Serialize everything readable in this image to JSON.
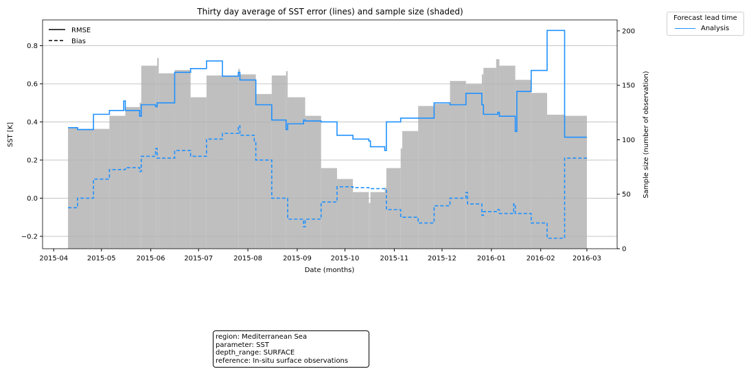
{
  "chart_data": {
    "type": "line",
    "title": "Thirty day average of SST error (lines) and sample size (shaded)",
    "xlabel": "Date (months)",
    "ylabel": "SST [K]",
    "y2label": "Sample size (number of observation)",
    "ylim": [
      -0.265,
      0.935
    ],
    "y2lim": [
      0,
      210
    ],
    "yticks": [
      -0.2,
      0.0,
      0.2,
      0.4,
      0.6,
      0.8
    ],
    "ytick_labels": [
      "−0.2",
      "0.0",
      "0.2",
      "0.4",
      "0.6",
      "0.8"
    ],
    "y2ticks": [
      0,
      50,
      100,
      150,
      200
    ],
    "y2tick_labels": [
      "0",
      "50",
      "100",
      "150",
      "200"
    ],
    "xlim": [
      "2015-03-25",
      "2016-03-20"
    ],
    "xticks": [
      "2015-04-01",
      "2015-05-01",
      "2015-06-01",
      "2015-07-01",
      "2015-08-01",
      "2015-09-01",
      "2015-10-01",
      "2015-11-01",
      "2015-12-01",
      "2016-01-01",
      "2016-02-01",
      "2016-03-01"
    ],
    "xtick_labels": [
      "2015-04",
      "2015-05",
      "2015-06",
      "2015-07",
      "2015-08",
      "2015-09",
      "2015-10",
      "2015-11",
      "2015-12",
      "2016-01",
      "2016-02",
      "2016-03"
    ],
    "grid": "horizontal",
    "style_legend": {
      "placement": "upper-left",
      "entries": [
        {
          "label": "RMSE",
          "dash": "solid"
        },
        {
          "label": "Bias",
          "dash": "dashed"
        }
      ]
    },
    "series_legend": {
      "placement": "outside-upper-right",
      "title": "Forecast lead time",
      "entries": [
        {
          "label": "Analysis",
          "color": "#1e90ff"
        }
      ]
    },
    "colors": {
      "line": "#1e90ff",
      "shade": "#bfbfbf",
      "grid": "#b0b0b0"
    },
    "sample_size": {
      "x": [
        "2015-04-10",
        "2015-04-16",
        "2015-04-26",
        "2015-05-06",
        "2015-05-16",
        "2015-05-25",
        "2015-05-26",
        "2015-06-04",
        "2015-06-05",
        "2015-06-06",
        "2015-06-16",
        "2015-06-26",
        "2015-07-06",
        "2015-07-16",
        "2015-07-26",
        "2015-07-27",
        "2015-08-06",
        "2015-08-16",
        "2015-08-25",
        "2015-08-26",
        "2015-09-06",
        "2015-09-16",
        "2015-09-26",
        "2015-10-06",
        "2015-10-16",
        "2015-10-17",
        "2015-10-26",
        "2015-10-27",
        "2015-11-05",
        "2015-11-06",
        "2015-11-16",
        "2015-11-26",
        "2015-12-06",
        "2015-12-16",
        "2015-12-26",
        "2015-12-27",
        "2016-01-04",
        "2016-01-06",
        "2016-01-16",
        "2016-01-26",
        "2016-02-05",
        "2016-02-16",
        "2016-03-01"
      ],
      "values": [
        111,
        110,
        110,
        122,
        130,
        134,
        168,
        168,
        175,
        161,
        164,
        139,
        159,
        159,
        165,
        160,
        142,
        159,
        163,
        139,
        122,
        74,
        64,
        52,
        42,
        52,
        56,
        74,
        92,
        108,
        131,
        133,
        154,
        151,
        160,
        166,
        174,
        168,
        155,
        143,
        123,
        122,
        38
      ]
    },
    "series": [
      {
        "name": "RMSE",
        "x": [
          "2015-04-10",
          "2015-04-16",
          "2015-04-26",
          "2015-05-06",
          "2015-05-15",
          "2015-05-16",
          "2015-05-25",
          "2015-05-26",
          "2015-06-04",
          "2015-06-05",
          "2015-06-16",
          "2015-06-26",
          "2015-07-06",
          "2015-07-16",
          "2015-07-26",
          "2015-07-27",
          "2015-08-06",
          "2015-08-16",
          "2015-08-25",
          "2015-08-26",
          "2015-09-05",
          "2015-09-06",
          "2015-09-16",
          "2015-09-26",
          "2015-10-06",
          "2015-10-16",
          "2015-10-17",
          "2015-10-26",
          "2015-10-27",
          "2015-11-05",
          "2015-11-16",
          "2015-11-26",
          "2015-12-06",
          "2015-12-16",
          "2015-12-26",
          "2015-12-27",
          "2016-01-05",
          "2016-01-06",
          "2016-01-16",
          "2016-01-17",
          "2016-01-26",
          "2016-02-05",
          "2016-02-16",
          "2016-03-01"
        ],
        "values": [
          0.37,
          0.36,
          0.44,
          0.46,
          0.51,
          0.46,
          0.43,
          0.49,
          0.48,
          0.5,
          0.66,
          0.68,
          0.72,
          0.64,
          0.66,
          0.62,
          0.49,
          0.41,
          0.36,
          0.39,
          0.41,
          0.405,
          0.4,
          0.33,
          0.31,
          0.3,
          0.27,
          0.25,
          0.4,
          0.42,
          0.42,
          0.5,
          0.49,
          0.55,
          0.49,
          0.44,
          0.45,
          0.43,
          0.35,
          0.56,
          0.67,
          0.88,
          0.32,
          0.32
        ]
      },
      {
        "name": "Bias",
        "x": [
          "2015-04-10",
          "2015-04-16",
          "2015-04-26",
          "2015-05-06",
          "2015-05-16",
          "2015-05-25",
          "2015-05-26",
          "2015-06-04",
          "2015-06-05",
          "2015-06-16",
          "2015-06-26",
          "2015-07-06",
          "2015-07-16",
          "2015-07-26",
          "2015-07-27",
          "2015-08-05",
          "2015-08-06",
          "2015-08-16",
          "2015-08-26",
          "2015-09-05",
          "2015-09-06",
          "2015-09-16",
          "2015-09-26",
          "2015-10-06",
          "2015-10-16",
          "2015-10-17",
          "2015-10-27",
          "2015-11-05",
          "2015-11-16",
          "2015-11-26",
          "2015-12-06",
          "2015-12-16",
          "2015-12-17",
          "2015-12-26",
          "2015-12-27",
          "2016-01-05",
          "2016-01-06",
          "2016-01-15",
          "2016-01-16",
          "2016-01-26",
          "2016-02-05",
          "2016-02-16",
          "2016-03-01"
        ],
        "values": [
          -0.05,
          0.0,
          0.1,
          0.15,
          0.16,
          0.14,
          0.22,
          0.26,
          0.21,
          0.25,
          0.22,
          0.31,
          0.34,
          0.38,
          0.33,
          0.3,
          0.2,
          0.0,
          -0.11,
          -0.15,
          -0.11,
          -0.02,
          0.06,
          0.055,
          0.05,
          0.05,
          -0.06,
          -0.1,
          -0.13,
          -0.04,
          0.0,
          0.03,
          -0.03,
          -0.09,
          -0.07,
          -0.06,
          -0.08,
          -0.03,
          -0.08,
          -0.13,
          -0.21,
          0.21,
          0.21
        ]
      }
    ]
  },
  "info_box": {
    "lines": [
      "region: Mediterranean Sea",
      "parameter: SST",
      "depth_range: SURFACE",
      "reference: In-situ surface observations"
    ]
  }
}
